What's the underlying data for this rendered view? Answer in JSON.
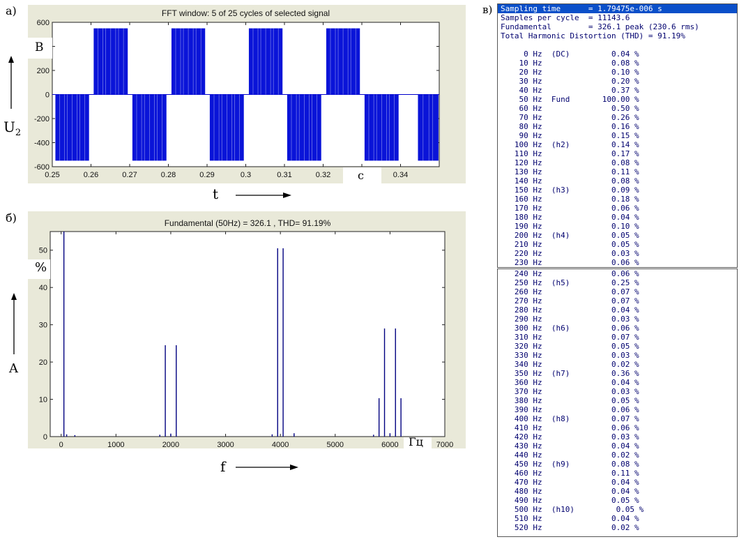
{
  "labels": {
    "panel_a": "а)",
    "panel_b": "б)",
    "panel_c": "в)",
    "a_y_unit": "В",
    "a_y_axis": "U",
    "a_y_axis_sub": "2",
    "a_x_axis": "t",
    "a_x_unit": "с",
    "b_y_unit": "%",
    "b_y_axis": "A",
    "b_x_axis": "f",
    "b_x_unit": "Гц"
  },
  "chart_data": [
    {
      "type": "line",
      "title": "FFT window: 5 of 25 cycles of selected signal",
      "xlim": [
        0.25,
        0.35
      ],
      "ylim": [
        -600,
        600
      ],
      "x_ticks": [
        "0.25",
        "0.26",
        "0.27",
        "0.28",
        "0.29",
        "0.3",
        "0.31",
        "0.32",
        "0.33",
        "0.34"
      ],
      "y_ticks": [
        "600",
        "400",
        "200",
        "0",
        "-200",
        "-400",
        "-600"
      ],
      "y_tick_values": [
        600,
        400,
        200,
        0,
        -200,
        -400,
        -600
      ],
      "amplitude": 550,
      "fundamental_hz": 50,
      "pwm_segments": [
        {
          "x0": 0.2508,
          "x1": 0.2595,
          "y": -550
        },
        {
          "x0": 0.2607,
          "x1": 0.2695,
          "y": 550
        },
        {
          "x0": 0.2707,
          "x1": 0.2795,
          "y": -550
        },
        {
          "x0": 0.2808,
          "x1": 0.2895,
          "y": 550
        },
        {
          "x0": 0.2907,
          "x1": 0.2995,
          "y": -550
        },
        {
          "x0": 0.3008,
          "x1": 0.3095,
          "y": 550
        },
        {
          "x0": 0.3107,
          "x1": 0.3195,
          "y": -550
        },
        {
          "x0": 0.3208,
          "x1": 0.3295,
          "y": 550
        },
        {
          "x0": 0.3307,
          "x1": 0.3395,
          "y": -550
        },
        {
          "x0": 0.3445,
          "x1": 0.3498,
          "y": -550
        }
      ]
    },
    {
      "type": "bar",
      "title": "Fundamental (50Hz) = 326.1 , THD= 91.19%",
      "xlim": [
        -200,
        7000
      ],
      "ylim": [
        0,
        55
      ],
      "x_ticks": [
        "0",
        "1000",
        "2000",
        "3000",
        "4000",
        "5000",
        "6000",
        "7000"
      ],
      "x_tick_values": [
        0,
        1000,
        2000,
        3000,
        4000,
        5000,
        6000,
        7000
      ],
      "y_ticks": [
        "0",
        "10",
        "20",
        "30",
        "40",
        "50"
      ],
      "y_tick_values": [
        0,
        10,
        20,
        30,
        40,
        50
      ],
      "bars": [
        {
          "x": 50,
          "y": 55
        },
        {
          "x": 1900,
          "y": 24.5
        },
        {
          "x": 2100,
          "y": 24.5
        },
        {
          "x": 3950,
          "y": 50.5
        },
        {
          "x": 4050,
          "y": 50.5
        },
        {
          "x": 5800,
          "y": 10.3
        },
        {
          "x": 5900,
          "y": 29
        },
        {
          "x": 6100,
          "y": 29
        },
        {
          "x": 6200,
          "y": 10.3
        },
        {
          "x": 100,
          "y": 0.6
        },
        {
          "x": 250,
          "y": 0.4
        },
        {
          "x": 1800,
          "y": 0.5
        },
        {
          "x": 2000,
          "y": 0.8
        },
        {
          "x": 3850,
          "y": 0.6
        },
        {
          "x": 4250,
          "y": 0.9
        },
        {
          "x": 5700,
          "y": 0.5
        },
        {
          "x": 6000,
          "y": 0.9
        }
      ]
    }
  ],
  "table": {
    "header": [
      "Sampling time      = 1.79475e-006 s",
      "Samples per cycle  = 11143.6",
      "Fundamental        = 326.1 peak (230.6 rms)",
      "Total Harmonic Distortion (THD) = 91.19%"
    ],
    "rows_part1": [
      "     0 Hz  (DC)         0.04 %",
      "    10 Hz               0.08 %",
      "    20 Hz               0.10 %",
      "    30 Hz               0.20 %",
      "    40 Hz               0.37 %",
      "    50 Hz  Fund       100.00 %",
      "    60 Hz               0.50 %",
      "    70 Hz               0.26 %",
      "    80 Hz               0.16 %",
      "    90 Hz               0.15 %",
      "   100 Hz  (h2)         0.14 %",
      "   110 Hz               0.17 %",
      "   120 Hz               0.08 %",
      "   130 Hz               0.11 %",
      "   140 Hz               0.08 %",
      "   150 Hz  (h3)         0.09 %",
      "   160 Hz               0.18 %",
      "   170 Hz               0.06 %",
      "   180 Hz               0.04 %",
      "   190 Hz               0.10 %",
      "   200 Hz  (h4)         0.05 %",
      "   210 Hz               0.05 %",
      "   220 Hz               0.03 %",
      "   230 Hz               0.06 %"
    ],
    "rows_part2": [
      "   240 Hz               0.06 %",
      "   250 Hz  (h5)         0.25 %",
      "   260 Hz               0.07 %",
      "   270 Hz               0.07 %",
      "   280 Hz               0.04 %",
      "   290 Hz               0.03 %",
      "   300 Hz  (h6)         0.06 %",
      "   310 Hz               0.07 %",
      "   320 Hz               0.05 %",
      "   330 Hz               0.03 %",
      "   340 Hz               0.02 %",
      "   350 Hz  (h7)         0.36 %",
      "   360 Hz               0.04 %",
      "   370 Hz               0.03 %",
      "   380 Hz               0.05 %",
      "   390 Hz               0.06 %",
      "   400 Hz  (h8)         0.07 %",
      "   410 Hz               0.06 %",
      "   420 Hz               0.03 %",
      "   430 Hz               0.04 %",
      "   440 Hz               0.02 %",
      "   450 Hz  (h9)         0.08 %",
      "   460 Hz               0.11 %",
      "   470 Hz               0.04 %",
      "   480 Hz               0.04 %",
      "   490 Hz               0.05 %",
      "   500 Hz  (h10)         0.05 %",
      "   510 Hz               0.04 %",
      "   520 Hz               0.02 %"
    ]
  }
}
